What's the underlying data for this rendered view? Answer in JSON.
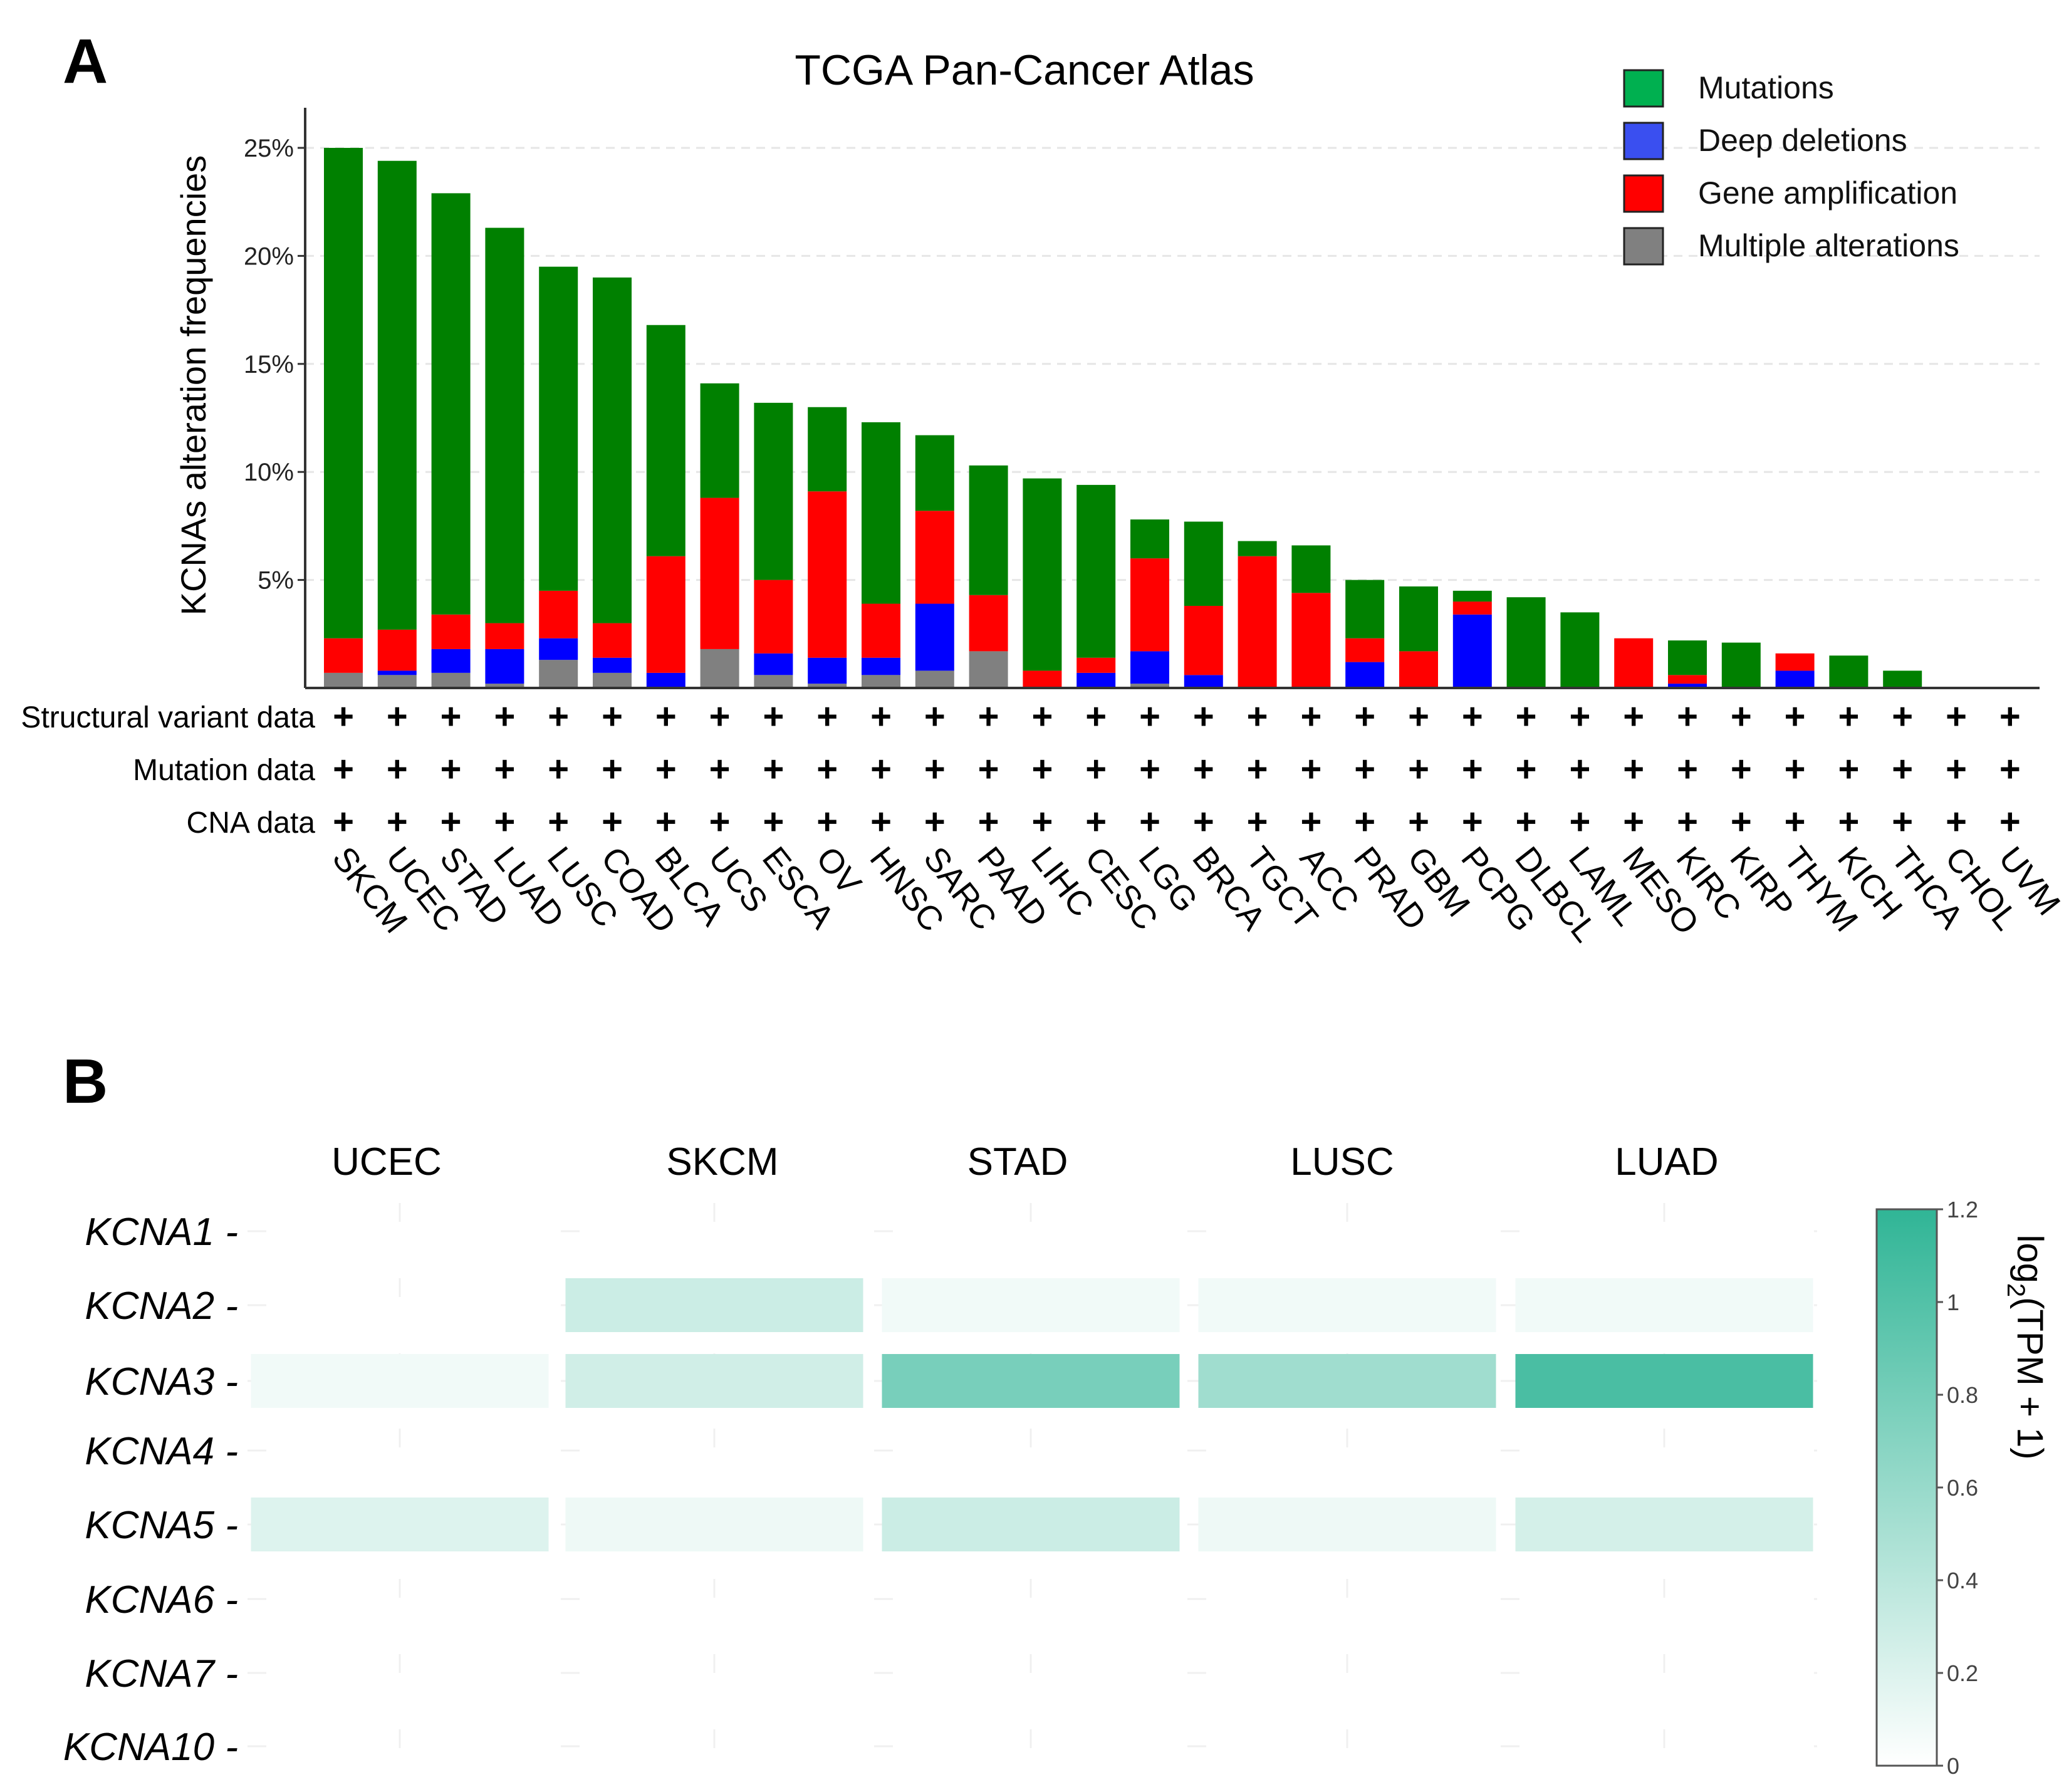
{
  "panel_a": {
    "letter": "A",
    "chart_data": {
      "type": "bar",
      "stacked": true,
      "title": "TCGA Pan-Cancer Atlas",
      "xlabel": "",
      "ylabel": "KCNAs alteration frequencies",
      "ylim": [
        0,
        26.5
      ],
      "yticks": [
        5,
        10,
        15,
        20,
        25
      ],
      "ytick_labels": [
        "5%",
        "10%",
        "15%",
        "20%",
        "25%"
      ],
      "grid": "horizontal dashed",
      "legend_position": "top-right",
      "categories": [
        "SKCM",
        "UCEC",
        "STAD",
        "LUAD",
        "LUSC",
        "COAD",
        "BLCA",
        "UCS",
        "ESCA",
        "OV",
        "HNSC",
        "SARC",
        "PAAD",
        "LIHC",
        "CESC",
        "LGG",
        "BRCA",
        "TGCT",
        "ACC",
        "PRAD",
        "GBM",
        "PCPG",
        "DLBCL",
        "LAML",
        "MESO",
        "KIRC",
        "KIRP",
        "THYM",
        "KICH",
        "THCA",
        "CHOL",
        "UVM"
      ],
      "series": [
        {
          "name": "Multiple alterations",
          "color": "#808080",
          "values": [
            0.7,
            0.6,
            0.7,
            0.2,
            1.3,
            0.7,
            0.0,
            1.8,
            0.6,
            0.2,
            0.6,
            0.8,
            1.7,
            0,
            0,
            0.2,
            0,
            0,
            0,
            0,
            0,
            0,
            0,
            0,
            0,
            0,
            0,
            0,
            0,
            0,
            0,
            0
          ]
        },
        {
          "name": "Deep deletions",
          "color": "#0000ff",
          "values": [
            0.0,
            0.2,
            1.1,
            1.6,
            1.0,
            0.7,
            0.7,
            0.0,
            1.0,
            1.2,
            0.8,
            3.1,
            0.0,
            0.0,
            0.7,
            1.5,
            0.6,
            0,
            0,
            1.2,
            0,
            3.4,
            0,
            0,
            0,
            0.2,
            0,
            0.8,
            0,
            0,
            0,
            0
          ]
        },
        {
          "name": "Gene amplification",
          "color": "#ff0000",
          "values": [
            1.6,
            1.9,
            1.6,
            1.2,
            2.2,
            1.6,
            5.4,
            7.0,
            3.4,
            7.7,
            2.5,
            4.3,
            2.6,
            0.8,
            0.7,
            4.3,
            3.2,
            6.1,
            4.4,
            1.1,
            1.7,
            0.6,
            0,
            0,
            2.3,
            0.4,
            0,
            0.8,
            0,
            0,
            0,
            0
          ]
        },
        {
          "name": "Mutations",
          "color": "#008000",
          "values": [
            22.7,
            21.7,
            19.5,
            18.3,
            15.0,
            16.0,
            10.7,
            5.3,
            8.2,
            3.9,
            8.4,
            3.5,
            6.0,
            8.9,
            8.0,
            1.8,
            3.9,
            0.7,
            2.2,
            2.7,
            3.0,
            0.5,
            4.2,
            3.5,
            0,
            1.6,
            2.1,
            0,
            1.5,
            0.8,
            0,
            0
          ]
        }
      ],
      "legend": [
        {
          "label": "Mutations",
          "color": "#00b050"
        },
        {
          "label": "Deep deletions",
          "color": "#3a4ff0"
        },
        {
          "label": "Gene amplification",
          "color": "#ff0000"
        },
        {
          "label": "Multiple alterations",
          "color": "#808080"
        }
      ],
      "data_rows": [
        {
          "label": "Structural variant data",
          "marker": "+"
        },
        {
          "label": "Mutation data",
          "marker": "+"
        },
        {
          "label": "CNA data",
          "marker": "+"
        }
      ]
    }
  },
  "panel_b": {
    "letter": "B",
    "chart_data": {
      "type": "heatmap",
      "columns": [
        "UCEC",
        "SKCM",
        "STAD",
        "LUSC",
        "LUAD"
      ],
      "rows": [
        "KCNA1",
        "KCNA2",
        "KCNA3",
        "KCNA4",
        "KCNA5",
        "KCNA6",
        "KCNA7",
        "KCNA10"
      ],
      "row_tick_suffix": " -",
      "values": [
        [
          0.0,
          0.0,
          0.0,
          0.0,
          0.0
        ],
        [
          0.0,
          0.3,
          0.08,
          0.08,
          0.08
        ],
        [
          0.08,
          0.27,
          0.78,
          0.55,
          1.05
        ],
        [
          0.0,
          0.0,
          0.0,
          0.0,
          0.0
        ],
        [
          0.2,
          0.1,
          0.3,
          0.1,
          0.25
        ],
        [
          0.0,
          0.0,
          0.0,
          0.0,
          0.0
        ],
        [
          0.0,
          0.0,
          0.0,
          0.0,
          0.0
        ],
        [
          0.0,
          0.0,
          0.0,
          0.0,
          0.0
        ]
      ],
      "colorbar": {
        "label": "log2(TPM + 1)",
        "label_base": "log",
        "label_sub": "2",
        "label_rest": "(TPM + 1)",
        "range": [
          0,
          1.2
        ],
        "ticks": [
          "0",
          "0.2",
          "0.4",
          "0.6",
          "0.8",
          "1",
          "1.2"
        ],
        "color_low": "#ffffff",
        "color_high": "#30b596"
      }
    }
  }
}
